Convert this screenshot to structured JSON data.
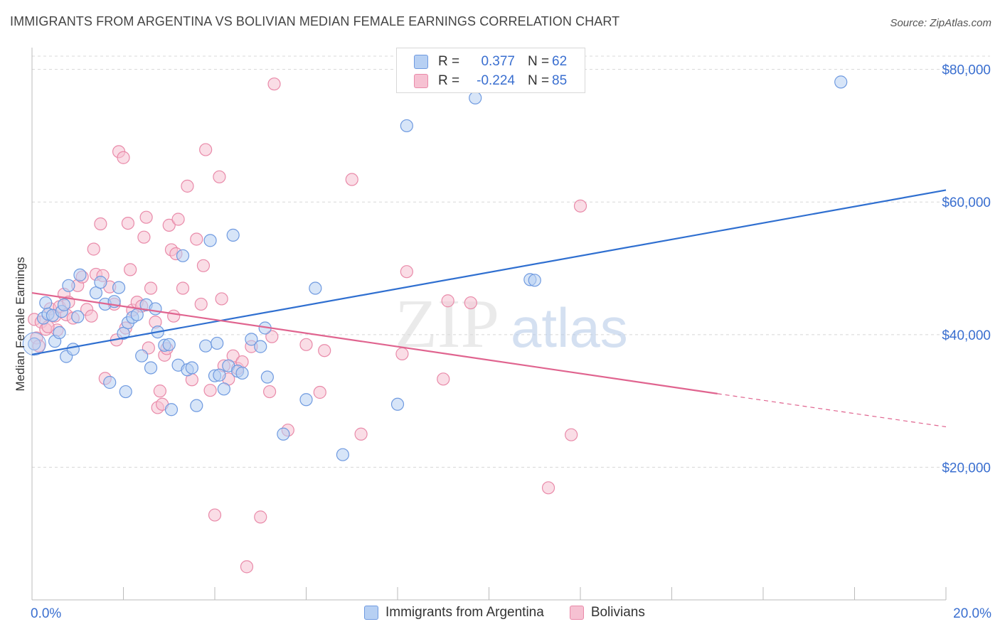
{
  "title": "IMMIGRANTS FROM ARGENTINA VS BOLIVIAN MEDIAN FEMALE EARNINGS CORRELATION CHART",
  "source": "Source: ZipAtlas.com",
  "watermark": {
    "zip": "ZIP",
    "atlas": "atlas"
  },
  "legend_top": {
    "rows": [
      {
        "r_label": "R =",
        "r_value": "0.377",
        "n_label": "N =",
        "n_value": "62"
      },
      {
        "r_label": "R =",
        "r_value": "-0.224",
        "n_label": "N =",
        "n_value": "85"
      }
    ]
  },
  "legend_bottom": {
    "items": [
      {
        "label": "Immigrants from Argentina"
      },
      {
        "label": "Bolivians"
      }
    ]
  },
  "colors": {
    "blue_fill": "#b7d0f3",
    "blue_stroke": "#6f9ae0",
    "blue_line": "#2f6fd0",
    "pink_fill": "#f6c1d2",
    "pink_stroke": "#e98aa9",
    "pink_line": "#e0648f",
    "grid": "#d8d8d8",
    "tick_label": "#3a6fd0"
  },
  "chart_data": {
    "type": "scatter",
    "ylabel": "Median Female Earnings",
    "xlim": [
      0,
      20
    ],
    "ylim": [
      0,
      82000
    ],
    "x_tick_labels": [
      "0.0%",
      "20.0%"
    ],
    "y_ticks": [
      20000,
      40000,
      60000,
      80000
    ],
    "y_tick_labels": [
      "$20,000",
      "$40,000",
      "$60,000",
      "$80,000"
    ],
    "grid": true,
    "series": [
      {
        "name": "Immigrants from Argentina",
        "color": "blue",
        "trend": {
          "x": [
            0.0,
            20.0
          ],
          "y": [
            37000,
            61800
          ]
        },
        "points": [
          [
            0.05,
            38600
          ],
          [
            0.25,
            42500
          ],
          [
            0.3,
            44800
          ],
          [
            0.35,
            43100
          ],
          [
            0.45,
            42900
          ],
          [
            0.5,
            39000
          ],
          [
            0.6,
            40300
          ],
          [
            0.65,
            43500
          ],
          [
            0.7,
            44500
          ],
          [
            0.75,
            36700
          ],
          [
            0.8,
            47400
          ],
          [
            0.9,
            37800
          ],
          [
            1.0,
            42700
          ],
          [
            1.05,
            49000
          ],
          [
            1.4,
            46300
          ],
          [
            1.5,
            47900
          ],
          [
            1.6,
            44600
          ],
          [
            1.7,
            32800
          ],
          [
            1.8,
            45000
          ],
          [
            1.9,
            47100
          ],
          [
            2.0,
            40200
          ],
          [
            2.05,
            31400
          ],
          [
            2.1,
            41800
          ],
          [
            2.2,
            42600
          ],
          [
            2.3,
            43000
          ],
          [
            2.4,
            36800
          ],
          [
            2.5,
            44500
          ],
          [
            2.6,
            35000
          ],
          [
            2.7,
            43900
          ],
          [
            2.75,
            40400
          ],
          [
            2.9,
            38400
          ],
          [
            3.0,
            38500
          ],
          [
            3.05,
            28700
          ],
          [
            3.2,
            35400
          ],
          [
            3.3,
            51900
          ],
          [
            3.4,
            34700
          ],
          [
            3.5,
            35000
          ],
          [
            3.6,
            29300
          ],
          [
            3.8,
            38300
          ],
          [
            3.9,
            54200
          ],
          [
            4.0,
            33800
          ],
          [
            4.05,
            38700
          ],
          [
            4.1,
            33900
          ],
          [
            4.2,
            31800
          ],
          [
            4.3,
            35300
          ],
          [
            4.4,
            55000
          ],
          [
            4.5,
            34500
          ],
          [
            4.6,
            34200
          ],
          [
            4.8,
            39300
          ],
          [
            5.0,
            38200
          ],
          [
            5.1,
            41000
          ],
          [
            5.15,
            33600
          ],
          [
            5.5,
            25000
          ],
          [
            6.0,
            30200
          ],
          [
            6.2,
            47000
          ],
          [
            6.8,
            21900
          ],
          [
            8.0,
            29500
          ],
          [
            8.2,
            71500
          ],
          [
            10.9,
            48300
          ],
          [
            11.0,
            48200
          ],
          [
            9.7,
            75700
          ],
          [
            17.7,
            78100
          ]
        ]
      },
      {
        "name": "Bolivians",
        "color": "pink",
        "trend": {
          "x": [
            0.0,
            15.0
          ],
          "y": [
            46300,
            31100
          ]
        },
        "trend_dashed": {
          "x": [
            15.0,
            20.0
          ],
          "y": [
            31100,
            26100
          ]
        },
        "points": [
          [
            0.05,
            42300
          ],
          [
            0.1,
            39500
          ],
          [
            0.2,
            41900
          ],
          [
            0.3,
            40800
          ],
          [
            0.4,
            43900
          ],
          [
            0.5,
            42800
          ],
          [
            0.55,
            40700
          ],
          [
            0.6,
            44200
          ],
          [
            0.7,
            46100
          ],
          [
            0.75,
            43000
          ],
          [
            0.8,
            44900
          ],
          [
            0.9,
            42500
          ],
          [
            1.0,
            47400
          ],
          [
            1.1,
            48700
          ],
          [
            1.2,
            43800
          ],
          [
            1.3,
            42800
          ],
          [
            1.35,
            52900
          ],
          [
            1.4,
            49100
          ],
          [
            1.5,
            56700
          ],
          [
            1.55,
            48900
          ],
          [
            1.6,
            33400
          ],
          [
            1.7,
            47200
          ],
          [
            1.8,
            44600
          ],
          [
            1.85,
            39200
          ],
          [
            1.9,
            67600
          ],
          [
            2.0,
            66700
          ],
          [
            2.05,
            41000
          ],
          [
            2.1,
            56800
          ],
          [
            2.15,
            49800
          ],
          [
            2.2,
            43700
          ],
          [
            2.3,
            44900
          ],
          [
            2.4,
            44300
          ],
          [
            2.45,
            54700
          ],
          [
            2.5,
            57700
          ],
          [
            2.55,
            38000
          ],
          [
            2.6,
            47000
          ],
          [
            2.7,
            41900
          ],
          [
            2.75,
            29000
          ],
          [
            2.8,
            31500
          ],
          [
            2.85,
            29500
          ],
          [
            2.9,
            36900
          ],
          [
            2.95,
            37900
          ],
          [
            3.0,
            56500
          ],
          [
            3.05,
            52800
          ],
          [
            3.1,
            42800
          ],
          [
            3.15,
            52200
          ],
          [
            3.2,
            57400
          ],
          [
            3.3,
            47000
          ],
          [
            3.4,
            62400
          ],
          [
            3.5,
            33200
          ],
          [
            3.6,
            54400
          ],
          [
            3.7,
            44600
          ],
          [
            3.75,
            50400
          ],
          [
            3.8,
            67900
          ],
          [
            3.9,
            31600
          ],
          [
            4.0,
            12800
          ],
          [
            4.1,
            63800
          ],
          [
            4.15,
            45400
          ],
          [
            4.2,
            35300
          ],
          [
            4.3,
            33300
          ],
          [
            4.4,
            36800
          ],
          [
            4.5,
            34900
          ],
          [
            4.6,
            35900
          ],
          [
            4.7,
            5000
          ],
          [
            4.8,
            38200
          ],
          [
            5.0,
            12500
          ],
          [
            5.2,
            31400
          ],
          [
            5.25,
            39700
          ],
          [
            5.3,
            77800
          ],
          [
            5.6,
            25600
          ],
          [
            6.0,
            38500
          ],
          [
            6.3,
            31300
          ],
          [
            6.4,
            37600
          ],
          [
            7.0,
            63400
          ],
          [
            7.2,
            25000
          ],
          [
            8.1,
            37100
          ],
          [
            8.2,
            49500
          ],
          [
            9.0,
            33300
          ],
          [
            9.1,
            45100
          ],
          [
            9.6,
            44800
          ],
          [
            11.3,
            16900
          ],
          [
            11.8,
            24900
          ],
          [
            12.0,
            59400
          ],
          [
            0.15,
            38300
          ],
          [
            0.35,
            41200
          ]
        ]
      }
    ]
  }
}
